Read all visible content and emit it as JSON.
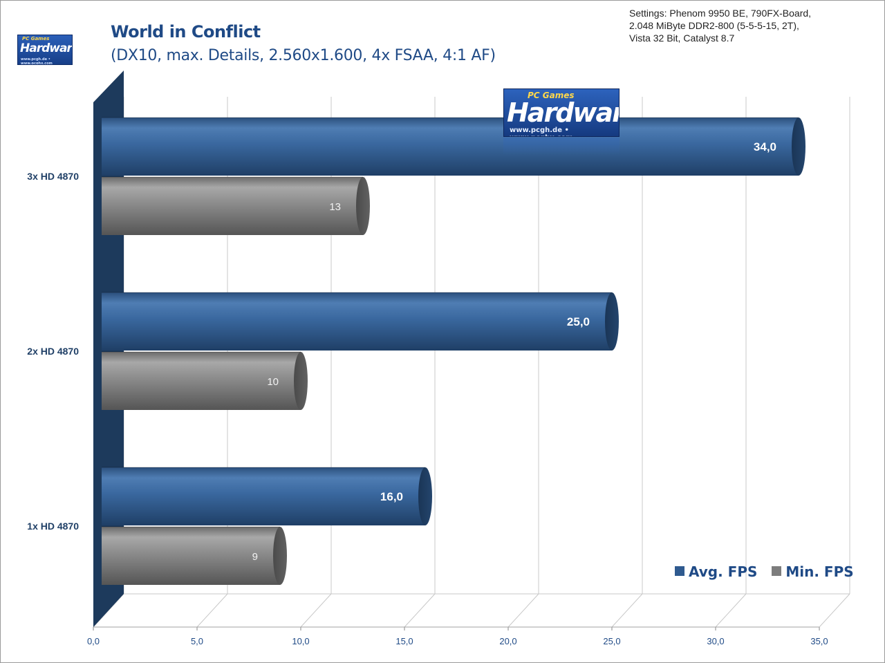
{
  "header": {
    "title": "World in Conflict",
    "subtitle": "(DX10, max. Details, 2.560x1.600, 4x FSAA, 4:1 AF)",
    "settings_lines": [
      "Settings: Phenom 9950 BE, 790FX-Board,",
      "2.048 MiByte DDR2-800 (5-5-5-15,  2T),",
      "Vista 32 Bit, Catalyst 8.7"
    ]
  },
  "logo": {
    "small_top": "PC Games",
    "main": "Hardware",
    "url": "www.pcgh.de • www.pcghx.com"
  },
  "colors": {
    "avg_series": "#2f5a8f",
    "min_series": "#7d7d7d",
    "brand_blue": "#1f4a86",
    "axis_wall": "#1d3a5c"
  },
  "legend": {
    "placement": "bottom-right",
    "items": [
      {
        "label": "Avg. FPS",
        "color": "#2f5a8f"
      },
      {
        "label": "Min. FPS",
        "color": "#7d7d7d"
      }
    ]
  },
  "chart_data": {
    "type": "bar",
    "orientation": "horizontal",
    "categories": [
      "3x HD 4870",
      "2x HD 4870",
      "1x HD 4870"
    ],
    "series": [
      {
        "name": "Avg. FPS",
        "values": [
          34.0,
          25.0,
          16.0
        ],
        "labels": [
          "34,0",
          "25,0",
          "16,0"
        ]
      },
      {
        "name": "Min. FPS",
        "values": [
          13,
          10,
          9
        ],
        "labels": [
          "13",
          "10",
          "9"
        ]
      }
    ],
    "title": "World in Conflict",
    "xlim": [
      0,
      35
    ],
    "xticks": [
      0,
      5,
      10,
      15,
      20,
      25,
      30,
      35
    ],
    "xtick_labels": [
      "0,0",
      "5,0",
      "10,0",
      "15,0",
      "20,0",
      "25,0",
      "30,0",
      "35,0"
    ],
    "grid": true
  }
}
